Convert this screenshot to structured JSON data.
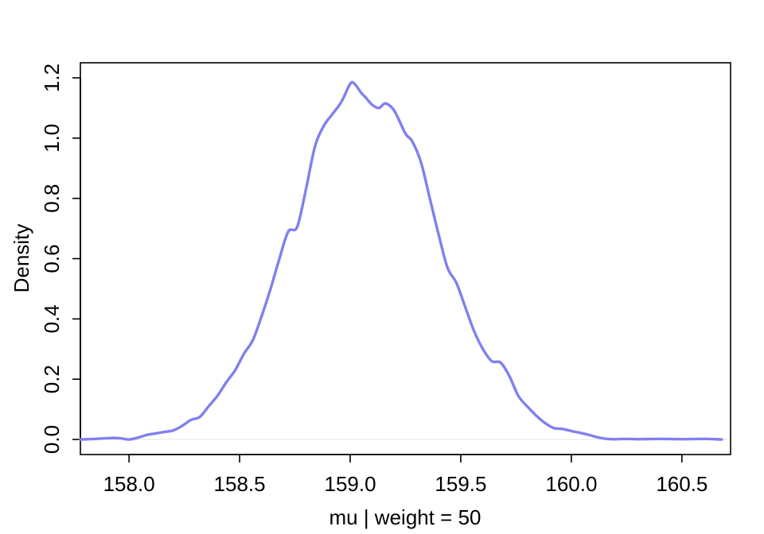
{
  "chart_data": {
    "type": "line",
    "title": "",
    "xlabel": "mu | weight = 50",
    "ylabel": "Density",
    "xlim": [
      157.78,
      160.72
    ],
    "ylim": [
      -0.05,
      1.25
    ],
    "x_ticks": [
      158.0,
      158.5,
      159.0,
      159.5,
      160.0,
      160.5
    ],
    "x_tick_labels": [
      "158.0",
      "158.5",
      "159.0",
      "159.5",
      "160.0",
      "160.5"
    ],
    "y_ticks": [
      0.0,
      0.2,
      0.4,
      0.6,
      0.8,
      1.0,
      1.2
    ],
    "y_tick_labels": [
      "0.0",
      "0.2",
      "0.4",
      "0.6",
      "0.8",
      "1.0",
      "1.2"
    ],
    "grid": false,
    "baseline_at_zero": true,
    "series": [
      {
        "color": "#8080f0",
        "x": [
          157.78,
          157.85,
          157.92,
          157.96,
          158.0,
          158.04,
          158.08,
          158.12,
          158.16,
          158.2,
          158.24,
          158.28,
          158.32,
          158.36,
          158.4,
          158.44,
          158.48,
          158.52,
          158.56,
          158.6,
          158.64,
          158.68,
          158.72,
          158.76,
          158.8,
          158.84,
          158.88,
          158.92,
          158.96,
          159.0,
          159.02,
          159.05,
          159.07,
          159.1,
          159.13,
          159.16,
          159.2,
          159.25,
          159.28,
          159.32,
          159.36,
          159.4,
          159.44,
          159.48,
          159.52,
          159.56,
          159.6,
          159.64,
          159.68,
          159.72,
          159.76,
          159.8,
          159.84,
          159.88,
          159.92,
          159.96,
          160.0,
          160.04,
          160.08,
          160.12,
          160.16,
          160.2,
          160.25,
          160.3,
          160.4,
          160.5,
          160.6,
          160.68
        ],
        "y": [
          0.0,
          0.002,
          0.005,
          0.004,
          0.0,
          0.006,
          0.015,
          0.02,
          0.025,
          0.03,
          0.045,
          0.065,
          0.075,
          0.11,
          0.145,
          0.19,
          0.23,
          0.285,
          0.33,
          0.41,
          0.5,
          0.6,
          0.69,
          0.705,
          0.83,
          0.97,
          1.04,
          1.08,
          1.12,
          1.18,
          1.18,
          1.15,
          1.135,
          1.11,
          1.1,
          1.115,
          1.09,
          1.015,
          0.99,
          0.92,
          0.8,
          0.68,
          0.57,
          0.52,
          0.44,
          0.36,
          0.3,
          0.26,
          0.255,
          0.21,
          0.145,
          0.11,
          0.08,
          0.055,
          0.038,
          0.035,
          0.028,
          0.022,
          0.015,
          0.007,
          0.002,
          0.001,
          0.002,
          0.001,
          0.002,
          0.001,
          0.002,
          0.0
        ]
      }
    ]
  }
}
